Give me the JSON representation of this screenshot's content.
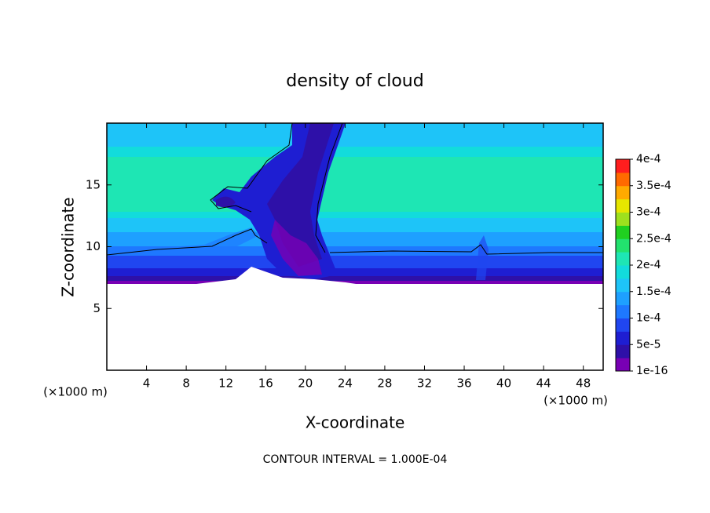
{
  "chart_data": {
    "type": "contour",
    "title": "density of cloud",
    "x_label": "X-coordinate",
    "y_label": "Z-coordinate",
    "x_unit_label": "(×1000 m)",
    "y_unit_label": "(×1000 m)",
    "footer": "CONTOUR INTERVAL = 1.000E-04",
    "xlim": [
      0,
      50
    ],
    "ylim": [
      0,
      20
    ],
    "xticks": [
      4,
      8,
      12,
      16,
      20,
      24,
      28,
      32,
      36,
      40,
      44,
      48
    ],
    "yticks": [
      5,
      10,
      15
    ],
    "colorbar": {
      "clim": [
        1e-16,
        0.0004
      ],
      "ticks": [
        {
          "value": 1e-16,
          "label": "1e-16"
        },
        {
          "value": 5e-05,
          "label": "5e-5"
        },
        {
          "value": 0.0001,
          "label": "1e-4"
        },
        {
          "value": 0.00015,
          "label": "1.5e-4"
        },
        {
          "value": 0.0002,
          "label": "2e-4"
        },
        {
          "value": 0.00025,
          "label": "2.5e-4"
        },
        {
          "value": 0.0003,
          "label": "3e-4"
        },
        {
          "value": 0.00035,
          "label": "3.5e-4"
        },
        {
          "value": 0.0004,
          "label": "4e-4"
        }
      ],
      "colors": [
        "#7800b4",
        "#2e10a8",
        "#1e1ed2",
        "#2046f0",
        "#1e78ff",
        "#1ea0ff",
        "#1ec4f8",
        "#12dcdc",
        "#1ee6b4",
        "#22e26e",
        "#20d020",
        "#9ee01e",
        "#e6e600",
        "#ffaa00",
        "#ff6a00",
        "#ff1e1e"
      ]
    }
  }
}
